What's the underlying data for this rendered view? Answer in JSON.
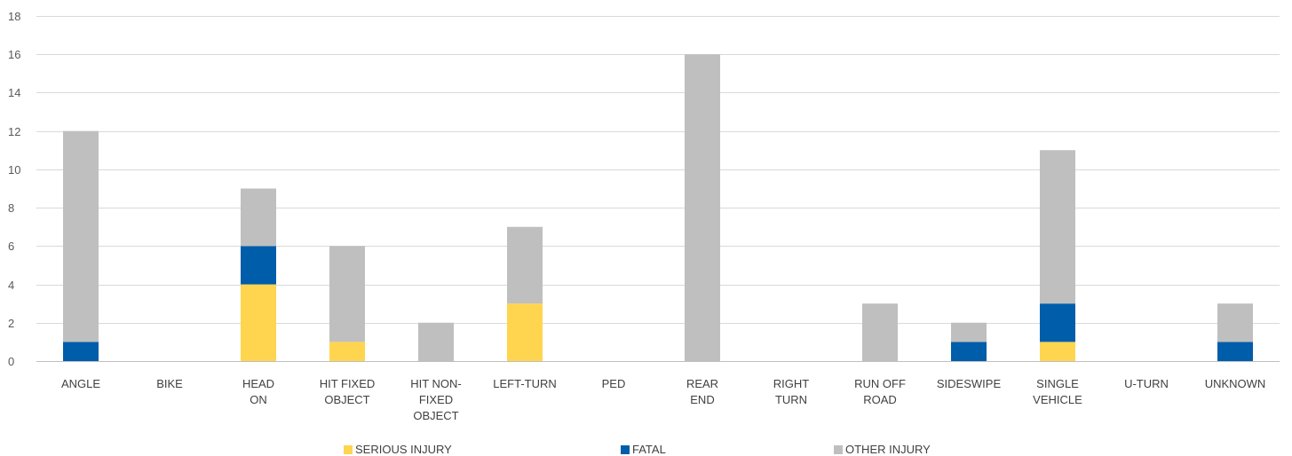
{
  "chart_data": {
    "type": "bar",
    "stacked": true,
    "title": "",
    "xlabel": "",
    "ylabel": "",
    "ylim": [
      0,
      18
    ],
    "yticks": [
      0,
      2,
      4,
      6,
      8,
      10,
      12,
      14,
      16,
      18
    ],
    "grid": true,
    "legend_position": "bottom",
    "categories": [
      [
        "ANGLE"
      ],
      [
        "BIKE"
      ],
      [
        "HEAD",
        "ON"
      ],
      [
        "HIT FIXED",
        "OBJECT"
      ],
      [
        "HIT NON-",
        "FIXED",
        "OBJECT"
      ],
      [
        "LEFT-TURN"
      ],
      [
        "PED"
      ],
      [
        "REAR",
        "END"
      ],
      [
        "RIGHT",
        "TURN"
      ],
      [
        "RUN OFF",
        "ROAD"
      ],
      [
        "SIDESWIPE"
      ],
      [
        "SINGLE",
        "VEHICLE"
      ],
      [
        "U-TURN"
      ],
      [
        "UNKNOWN"
      ]
    ],
    "series": [
      {
        "name": "SERIOUS INJURY",
        "color": "#FFD54F",
        "values": [
          0,
          0,
          4,
          1,
          0,
          3,
          0,
          0,
          0,
          0,
          0,
          1,
          0,
          0
        ]
      },
      {
        "name": "FATAL",
        "color": "#005DAA",
        "values": [
          1,
          0,
          2,
          0,
          0,
          0,
          0,
          0,
          0,
          0,
          1,
          2,
          0,
          1
        ]
      },
      {
        "name": "OTHER INJURY",
        "color": "#BFBFBF",
        "values": [
          11,
          0,
          3,
          5,
          2,
          4,
          0,
          16,
          0,
          3,
          1,
          8,
          0,
          2
        ]
      }
    ]
  }
}
